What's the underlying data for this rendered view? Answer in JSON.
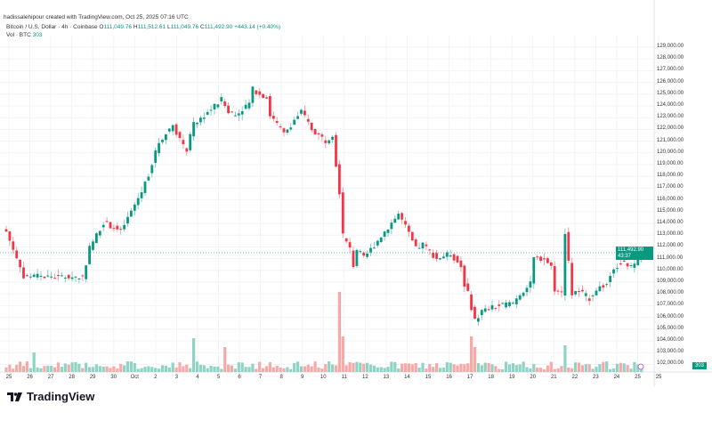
{
  "credit": "hadissalehipour created with TradingView.com, Oct 25, 2025 07:16 UTC",
  "legend": {
    "symbol": "Bitcoin / U.S. Dollar · 4h · Coinbase",
    "o_label": "O",
    "o": "111,049.76",
    "h_label": "H",
    "h": "111,512.61",
    "l_label": "L",
    "l": "111,049.76",
    "c_label": "C",
    "c": "111,492.90",
    "change": "+443.14 (+0.40%)",
    "vol_label": "Vol · BTC",
    "vol": "303"
  },
  "last_price": {
    "price": "111,492.90",
    "countdown": "43:37",
    "volume": "303"
  },
  "brand": "TradingView",
  "colors": {
    "up": "#089981",
    "down": "#f23645",
    "up_vol": "#8fd3c5",
    "down_vol": "#f7a9a7"
  },
  "chart_data": {
    "type": "candlestick",
    "interval": "4h",
    "price_ticks": [
      "129,000.00",
      "128,000.00",
      "127,000.00",
      "126,000.00",
      "125,000.00",
      "124,000.00",
      "123,000.00",
      "122,000.00",
      "121,000.00",
      "120,000.00",
      "119,000.00",
      "118,000.00",
      "117,000.00",
      "116,000.00",
      "115,000.00",
      "114,000.00",
      "113,000.00",
      "112,000.00",
      "111,000.00",
      "110,000.00",
      "109,000.00",
      "108,000.00",
      "107,000.00",
      "106,000.00",
      "105,000.00",
      "104,000.00",
      "103,000.00",
      "102,000.00"
    ],
    "time_ticks": [
      "25",
      "26",
      "27",
      "28",
      "29",
      "30",
      "Oct",
      "2",
      "3",
      "4",
      "5",
      "6",
      "7",
      "8",
      "9",
      "10",
      "11",
      "12",
      "13",
      "14",
      "15",
      "16",
      "17",
      "18",
      "19",
      "20",
      "21",
      "22",
      "23",
      "24",
      "25",
      "25"
    ],
    "ylim": [
      101500,
      129200
    ],
    "close_keypoints_k": [
      [
        0,
        113.3
      ],
      [
        5,
        109.5
      ],
      [
        22,
        109.4
      ],
      [
        24,
        111.9
      ],
      [
        28,
        114.1
      ],
      [
        33,
        113.3
      ],
      [
        39,
        116.7
      ],
      [
        41,
        118.2
      ],
      [
        44,
        120.9
      ],
      [
        48,
        122.4
      ],
      [
        51,
        120.5
      ],
      [
        52,
        120.3
      ],
      [
        54,
        122.4
      ],
      [
        62,
        124.5
      ],
      [
        64,
        123.5
      ],
      [
        66,
        123.2
      ],
      [
        70,
        124.2
      ],
      [
        71,
        125.4
      ],
      [
        75,
        124.7
      ],
      [
        76,
        123.2
      ],
      [
        80,
        121.6
      ],
      [
        83,
        122.8
      ],
      [
        85,
        123.5
      ],
      [
        88,
        122.0
      ],
      [
        92,
        121.0
      ],
      [
        94,
        121.6
      ],
      [
        95,
        119.0
      ],
      [
        96,
        116.7
      ],
      [
        97,
        112.9
      ],
      [
        99,
        111.8
      ],
      [
        100,
        110.4
      ],
      [
        101,
        111.8
      ],
      [
        103,
        111.0
      ],
      [
        109,
        113.3
      ],
      [
        113,
        114.8
      ],
      [
        115,
        113.7
      ],
      [
        118,
        111.8
      ],
      [
        120,
        112.2
      ],
      [
        124,
        111.0
      ],
      [
        128,
        111.4
      ],
      [
        130,
        110.7
      ],
      [
        131,
        110.3
      ],
      [
        132,
        108.8
      ],
      [
        133,
        108.0
      ],
      [
        135,
        105.7
      ],
      [
        137,
        106.5
      ],
      [
        141,
        106.9
      ],
      [
        144,
        107.1
      ],
      [
        146,
        107.2
      ],
      [
        148,
        108.0
      ],
      [
        151,
        108.8
      ],
      [
        152,
        111.0
      ],
      [
        155,
        111.0
      ],
      [
        157,
        110.3
      ],
      [
        158,
        108.4
      ],
      [
        160,
        108.0
      ],
      [
        161,
        113.3
      ],
      [
        163,
        108.0
      ],
      [
        165,
        108.2
      ],
      [
        168,
        107.6
      ],
      [
        170,
        108.4
      ],
      [
        173,
        108.8
      ],
      [
        175,
        110.3
      ],
      [
        178,
        110.7
      ],
      [
        179,
        110.2
      ],
      [
        181,
        110.6
      ],
      [
        183,
        111.49
      ]
    ],
    "volume_spikes": [
      [
        8,
        22
      ],
      [
        54,
        38
      ],
      [
        63,
        28
      ],
      [
        96,
        90
      ],
      [
        97,
        40
      ],
      [
        134,
        40
      ],
      [
        135,
        28
      ],
      [
        161,
        30
      ]
    ]
  }
}
